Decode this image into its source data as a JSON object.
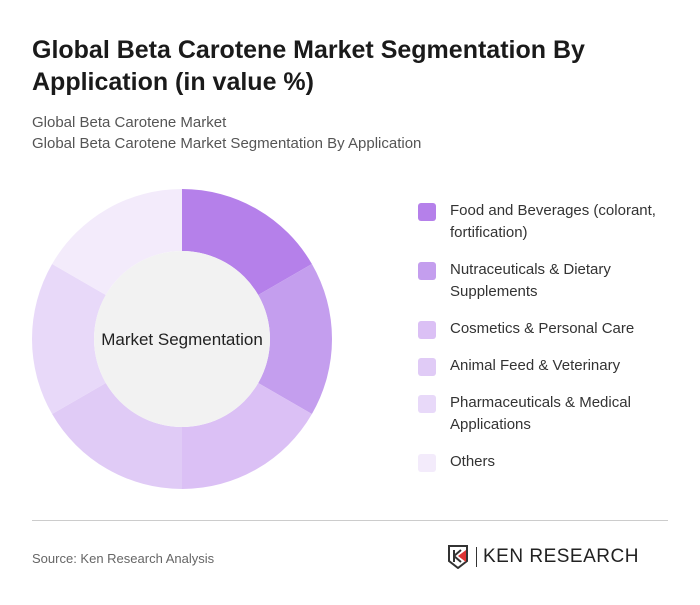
{
  "title": "Global Beta Carotene Market Segmentation By Application (in value %)",
  "subtitle1": "Global Beta Carotene Market",
  "subtitle2": "Global Beta Carotene Market Segmentation By Application",
  "source": "Source: Ken Research Analysis",
  "logo_text": "KEN RESEARCH",
  "chart_data": {
    "type": "pie",
    "variant": "donut",
    "center_label": "Market Segmentation",
    "legend_position": "right",
    "categories": [
      "Food and Beverages (colorant, fortification)",
      "Nutraceuticals & Dietary Supplements",
      "Cosmetics & Personal Care",
      "Animal Feed & Veterinary",
      "Pharmaceuticals & Medical Applications",
      "Others"
    ],
    "values": [
      16.7,
      16.7,
      16.7,
      16.7,
      16.7,
      16.7
    ],
    "colors": [
      "#b580ea",
      "#c49eee",
      "#dbc0f5",
      "#e0cbf6",
      "#e8d9f9",
      "#f3ebfb"
    ]
  }
}
